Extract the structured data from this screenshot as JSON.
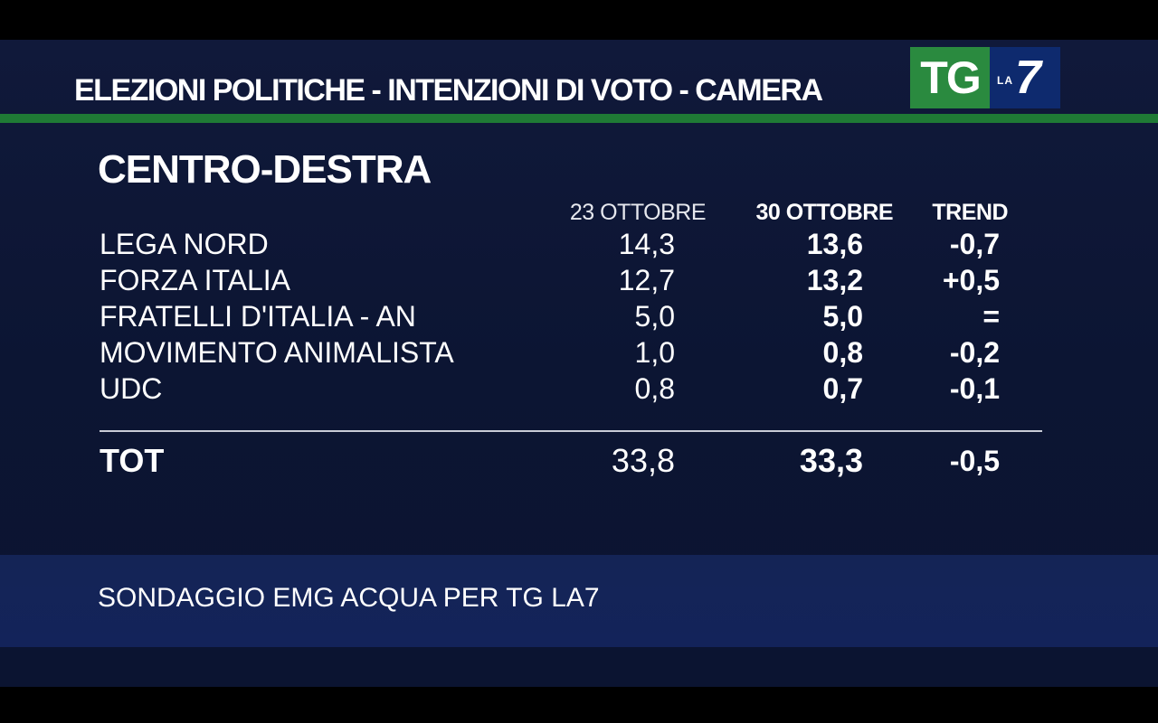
{
  "header": {
    "title": "ELEZIONI POLITICHE - INTENZIONI DI VOTO - CAMERA",
    "logo": {
      "tg": "TG",
      "la": "LA",
      "seven": "7"
    }
  },
  "section_title": "CENTRO-DESTRA",
  "columns": [
    "23 OTTOBRE",
    "30 OTTOBRE",
    "TREND"
  ],
  "rows": [
    {
      "name": "LEGA NORD",
      "oct23": "14,3",
      "oct30": "13,6",
      "trend": "-0,7"
    },
    {
      "name": "FORZA ITALIA",
      "oct23": "12,7",
      "oct30": "13,2",
      "trend": "+0,5"
    },
    {
      "name": "FRATELLI D'ITALIA - AN",
      "oct23": "5,0",
      "oct30": "5,0",
      "trend": "="
    },
    {
      "name": "MOVIMENTO ANIMALISTA",
      "oct23": "1,0",
      "oct30": "0,8",
      "trend": "-0,2"
    },
    {
      "name": "UDC",
      "oct23": "0,8",
      "oct30": "0,7",
      "trend": "-0,1"
    }
  ],
  "total": {
    "name": "TOT",
    "oct23": "33,8",
    "oct30": "33,3",
    "trend": "-0,5"
  },
  "source": "SONDAGGIO EMG ACQUA PER TG LA7",
  "colors": {
    "background": "#0c1533",
    "green_accent": "#1f7a35",
    "logo_green": "#2a8a3f",
    "logo_blue": "#0e2a6e",
    "footer_band": "#13235a"
  }
}
